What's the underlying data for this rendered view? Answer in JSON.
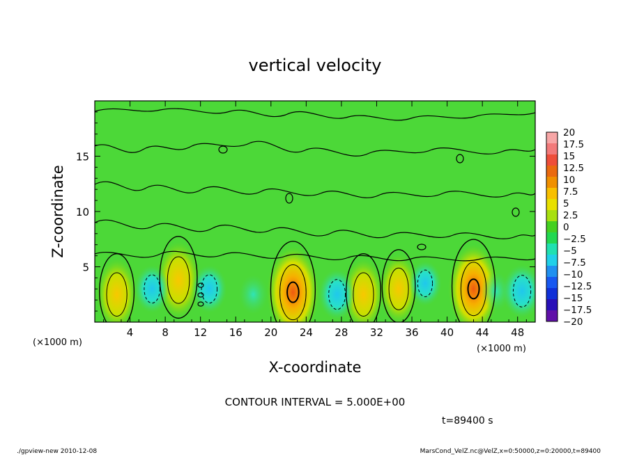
{
  "chart_data": {
    "type": "heatmap",
    "title": "vertical velocity",
    "xlabel": "X-coordinate",
    "ylabel": "Z-coordinate",
    "x_unit": "(×1000 m)",
    "z_unit": "(×1000 m)",
    "xlim": [
      0,
      50
    ],
    "ylim": [
      0,
      20
    ],
    "x_ticks": [
      4,
      8,
      12,
      16,
      20,
      24,
      28,
      32,
      36,
      40,
      44,
      48
    ],
    "y_ticks": [
      5,
      10,
      15
    ],
    "x_tick_labels": [
      "4",
      "8",
      "12",
      "16",
      "20",
      "24",
      "28",
      "32",
      "36",
      "40",
      "44",
      "48"
    ],
    "y_tick_labels": [
      "5",
      "10",
      "15"
    ],
    "colorbar": {
      "labels": [
        "20",
        "17.5",
        "15",
        "12.5",
        "10",
        "7.5",
        "5",
        "2.5",
        "0",
        "−2.5",
        "−5",
        "−7.5",
        "−10",
        "−12.5",
        "−15",
        "−17.5",
        "−20"
      ],
      "colors": [
        "#f7a6a6",
        "#f27a7a",
        "#ee4e3a",
        "#ea6a10",
        "#f09000",
        "#f8c000",
        "#e8e000",
        "#a8e010",
        "#44d020",
        "#22d850",
        "#20e0b0",
        "#20d0e8",
        "#2090f0",
        "#1858f0",
        "#1030d8",
        "#2810b8",
        "#6010a8"
      ]
    },
    "contour_interval_label": "CONTOUR INTERVAL = 5.000E+00",
    "updrafts": [
      {
        "x": 2.5,
        "z": 2.5,
        "peak": 6
      },
      {
        "x": 9.5,
        "z": 3.8,
        "peak": 8
      },
      {
        "x": 22.5,
        "z": 2.7,
        "peak": 13
      },
      {
        "x": 30.5,
        "z": 2.5,
        "peak": 6
      },
      {
        "x": 34.5,
        "z": 3.0,
        "peak": 5
      },
      {
        "x": 43.0,
        "z": 3.0,
        "peak": 12
      }
    ],
    "downdrafts": [
      {
        "x": 6.5,
        "z": 3.0,
        "peak": -6
      },
      {
        "x": 13.0,
        "z": 3.0,
        "peak": -6
      },
      {
        "x": 18.0,
        "z": 2.5,
        "peak": -3
      },
      {
        "x": 27.5,
        "z": 2.5,
        "peak": -7
      },
      {
        "x": 37.5,
        "z": 3.5,
        "peak": -5
      },
      {
        "x": 45.5,
        "z": 2.8,
        "peak": -3
      },
      {
        "x": 48.5,
        "z": 2.8,
        "peak": -8
      }
    ]
  },
  "time_label": "t=89400 s",
  "footer_left": "./gpview-new  2010-12-08",
  "footer_right": "MarsCond_VelZ.nc@VelZ,x=0:50000,z=0:20000,t=89400"
}
